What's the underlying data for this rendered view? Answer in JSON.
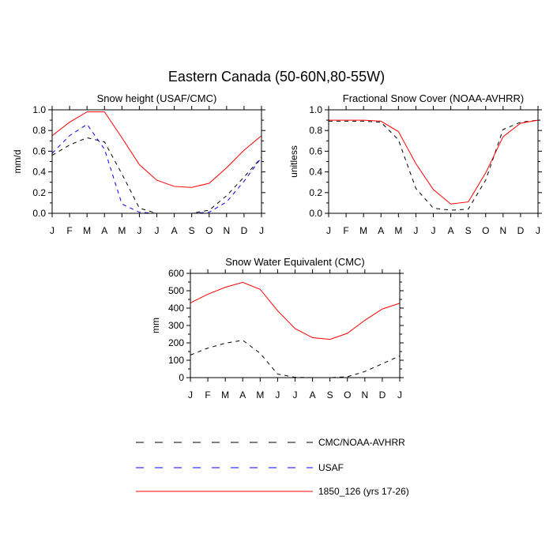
{
  "figure": {
    "title": "Eastern Canada (50-60N,80-55W)"
  },
  "legend": [
    {
      "label": "CMC/NOAA-AVHRR",
      "color": "#000000",
      "dash": "dashed"
    },
    {
      "label": "USAF",
      "color": "#0000ff",
      "dash": "dashed"
    },
    {
      "label": "1850_126 (yrs 17-26)",
      "color": "#ff0000",
      "dash": "solid"
    }
  ],
  "chart_data": [
    {
      "type": "line",
      "title": "Snow height (USAF/CMC)",
      "ylabel": "mm/d",
      "xlabel": "",
      "ylim": [
        0,
        1.0
      ],
      "yticks": [
        0.0,
        0.2,
        0.4,
        0.6,
        0.8,
        1.0
      ],
      "ytick_labels": [
        "0.0",
        "0.2",
        "0.4",
        "0.6",
        "0.8",
        "1.0"
      ],
      "categories": [
        "J",
        "F",
        "M",
        "A",
        "M",
        "J",
        "J",
        "A",
        "S",
        "O",
        "N",
        "D",
        "J"
      ],
      "series": [
        {
          "name": "CMC/NOAA-AVHRR",
          "color": "#000000",
          "dash": "dashed",
          "values": [
            0.56,
            0.66,
            0.73,
            0.69,
            0.38,
            0.05,
            0.0,
            0.0,
            0.0,
            0.03,
            0.17,
            0.35,
            0.54
          ]
        },
        {
          "name": "USAF",
          "color": "#0000ff",
          "dash": "dashed",
          "values": [
            0.58,
            0.75,
            0.86,
            0.62,
            0.09,
            0.01,
            0.0,
            0.0,
            0.0,
            0.01,
            0.11,
            0.31,
            0.54
          ]
        },
        {
          "name": "1850_126 (yrs 17-26)",
          "color": "#ff0000",
          "dash": "solid",
          "values": [
            0.75,
            0.88,
            0.98,
            0.98,
            0.73,
            0.47,
            0.32,
            0.26,
            0.25,
            0.29,
            0.44,
            0.61,
            0.75
          ]
        }
      ]
    },
    {
      "type": "line",
      "title": "Fractional Snow Cover (NOAA-AVHRR)",
      "ylabel": "unitless",
      "xlabel": "",
      "ylim": [
        0,
        1.0
      ],
      "yticks": [
        0.0,
        0.2,
        0.4,
        0.6,
        0.8,
        1.0
      ],
      "ytick_labels": [
        "0.0",
        "0.2",
        "0.4",
        "0.6",
        "0.8",
        "1.0"
      ],
      "categories": [
        "J",
        "F",
        "M",
        "A",
        "M",
        "J",
        "J",
        "A",
        "S",
        "O",
        "N",
        "D",
        "J"
      ],
      "series": [
        {
          "name": "CMC/NOAA-AVHRR",
          "color": "#000000",
          "dash": "dashed",
          "values": [
            0.89,
            0.89,
            0.89,
            0.88,
            0.71,
            0.24,
            0.05,
            0.03,
            0.04,
            0.32,
            0.81,
            0.88,
            0.9
          ]
        },
        {
          "name": "1850_126 (yrs 17-26)",
          "color": "#ff0000",
          "dash": "solid",
          "values": [
            0.9,
            0.9,
            0.9,
            0.89,
            0.79,
            0.48,
            0.23,
            0.09,
            0.11,
            0.39,
            0.74,
            0.87,
            0.9
          ]
        }
      ]
    },
    {
      "type": "line",
      "title": "Snow Water Equivalent (CMC)",
      "ylabel": "mm",
      "xlabel": "",
      "ylim": [
        0,
        600
      ],
      "yticks": [
        0,
        100,
        200,
        300,
        400,
        500,
        600
      ],
      "ytick_labels": [
        "0",
        "100",
        "200",
        "300",
        "400",
        "500",
        "600"
      ],
      "categories": [
        "J",
        "F",
        "M",
        "A",
        "M",
        "J",
        "J",
        "A",
        "S",
        "O",
        "N",
        "D",
        "J"
      ],
      "series": [
        {
          "name": "CMC/NOAA-AVHRR",
          "color": "#000000",
          "dash": "dashed",
          "values": [
            130,
            170,
            198,
            215,
            140,
            20,
            2,
            0,
            0,
            5,
            35,
            80,
            125
          ]
        },
        {
          "name": "1850_126 (yrs 17-26)",
          "color": "#ff0000",
          "dash": "solid",
          "values": [
            430,
            480,
            520,
            548,
            508,
            385,
            282,
            230,
            220,
            255,
            330,
            395,
            428
          ]
        }
      ]
    }
  ]
}
